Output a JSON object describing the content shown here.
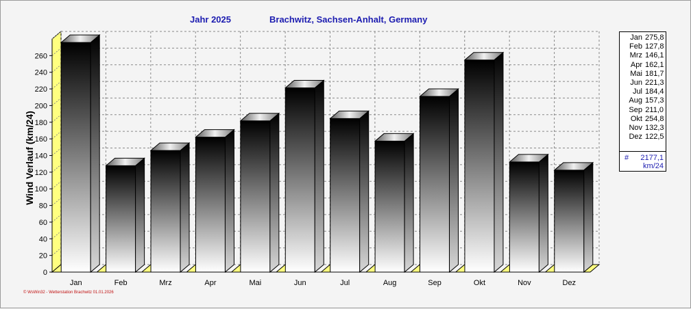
{
  "header": {
    "year_label": "Jahr  2025",
    "location": "Brachwitz, Sachsen-Anhalt, Germany"
  },
  "chart_data": {
    "type": "bar",
    "title": "Jahr  2025    Brachwitz, Sachsen-Anhalt, Germany",
    "ylabel": "Wind Verlauf  (km/24)",
    "xlabel": "",
    "categories": [
      "Jan",
      "Feb",
      "Mrz",
      "Apr",
      "Mai",
      "Jun",
      "Jul",
      "Aug",
      "Sep",
      "Okt",
      "Nov",
      "Dez"
    ],
    "values": [
      275.8,
      127.8,
      146.1,
      162.1,
      181.7,
      221.3,
      184.4,
      157.3,
      211.0,
      254.8,
      132.3,
      122.5
    ],
    "ylim": [
      0,
      280
    ],
    "yticks": [
      0,
      20,
      40,
      60,
      80,
      100,
      120,
      140,
      160,
      180,
      200,
      220,
      240,
      260
    ],
    "grid": true,
    "legend_position": "right",
    "colors": {
      "bar_top": "#000000",
      "bar_bottom": "#ffffff",
      "floor": "#ffff80",
      "title": "#1c1cb0"
    }
  },
  "legend": {
    "rows": [
      {
        "month": "Jan",
        "value": "275,8"
      },
      {
        "month": "Feb",
        "value": "127,8"
      },
      {
        "month": "Mrz",
        "value": "146,1"
      },
      {
        "month": "Apr",
        "value": "162,1"
      },
      {
        "month": "Mai",
        "value": "181,7"
      },
      {
        "month": "Jun",
        "value": "221,3"
      },
      {
        "month": "Jul",
        "value": "184,4"
      },
      {
        "month": "Aug",
        "value": "157,3"
      },
      {
        "month": "Sep",
        "value": "211,0"
      },
      {
        "month": "Okt",
        "value": "254,8"
      },
      {
        "month": "Nov",
        "value": "132,3"
      },
      {
        "month": "Dez",
        "value": "122,5"
      }
    ],
    "total_symbol": "#",
    "total_value": "2177,1",
    "total_unit": "km/24"
  },
  "footer": {
    "credit": "© WsWin32  -  Wetterstation Brachwitz  01.01.2026"
  }
}
